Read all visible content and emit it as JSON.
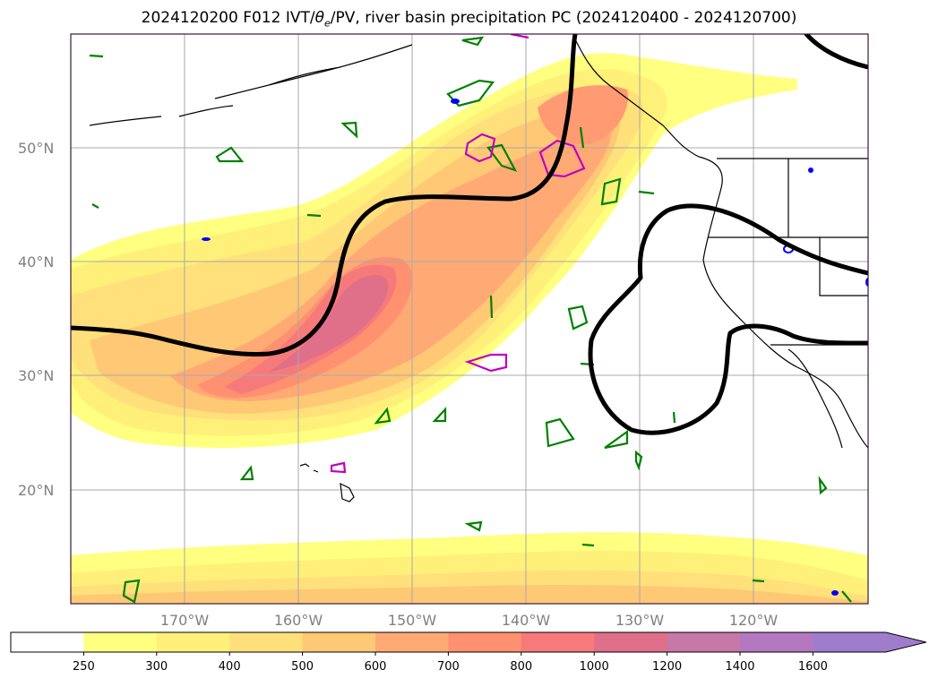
{
  "title": "2024120200 F012 IVT/θe/PV, river basin precipitation PC (2024120400 - 2024120700)",
  "title_parts": {
    "prefix": "2024120200 F012 IVT/",
    "theta": "θ",
    "theta_sub": "e",
    "suffix": "/PV, river basin precipitation PC (2024120400 - 2024120700)"
  },
  "map": {
    "lat_labels": [
      "50°N",
      "40°N",
      "30°N",
      "20°N"
    ],
    "lon_labels": [
      "170°W",
      "160°W",
      "150°W",
      "140°W",
      "130°W",
      "120°W"
    ],
    "lat_range": [
      10,
      60
    ],
    "lon_range": [
      -180,
      -110
    ],
    "grid": true
  },
  "colorbar": {
    "ticks": [
      "250",
      "300",
      "400",
      "500",
      "600",
      "700",
      "800",
      "1000",
      "1200",
      "1400",
      "1600"
    ],
    "colors": [
      "#ffffff",
      "#ffff80",
      "#fff07a",
      "#ffe07a",
      "#ffc875",
      "#ffaa75",
      "#ff9070",
      "#f77a7a",
      "#e0708a",
      "#c878a8",
      "#b478c0",
      "#a07ccc"
    ],
    "extend": "max"
  },
  "colors": {
    "theta_e_contour": "#000000",
    "pv_contour_green": "#008000",
    "pv_contour_magenta": "#c000c0",
    "precip_blue": "#0000ff",
    "frame": "#3a1a3a"
  }
}
